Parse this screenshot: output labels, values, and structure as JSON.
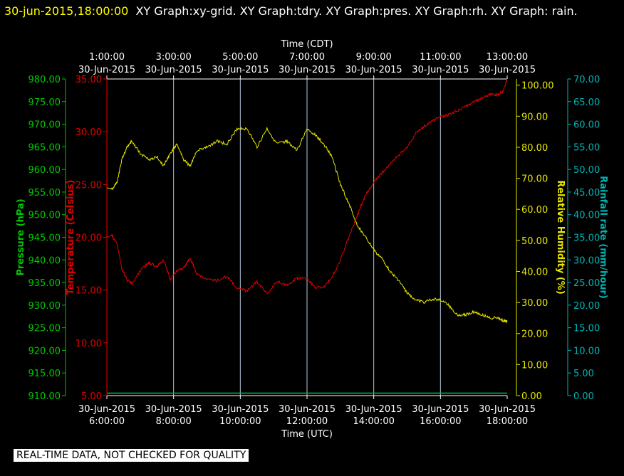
{
  "header": {
    "timestamp": "30-jun-2015,18:00:00",
    "title": "XY Graph:xy-grid.  XY Graph:tdry.  XY Graph:pres.  XY Graph:rh.  XY Graph: rain."
  },
  "disclaimer": "REAL-TIME DATA, NOT CHECKED FOR QUALITY",
  "colors": {
    "pressure": "#00c800",
    "temperature": "#e00000",
    "humidity": "#e6e600",
    "rain": "#00b4b4",
    "grid": "#b4c8dc",
    "frame": "#ffffff",
    "text": "#ffffff"
  },
  "chart_data": {
    "type": "line",
    "top_axis": {
      "title": "Time (CDT)",
      "ticks": [
        {
          "time": "1:00:00",
          "date": "30-Jun-2015"
        },
        {
          "time": "3:00:00",
          "date": "30-Jun-2015"
        },
        {
          "time": "5:00:00",
          "date": "30-Jun-2015"
        },
        {
          "time": "7:00:00",
          "date": "30-Jun-2015"
        },
        {
          "time": "9:00:00",
          "date": "30-Jun-2015"
        },
        {
          "time": "11:00:00",
          "date": "30-Jun-2015"
        },
        {
          "time": "13:00:00",
          "date": "30-Jun-2015"
        }
      ]
    },
    "bottom_axis": {
      "title": "Time (UTC)",
      "range_hours": [
        6,
        18
      ],
      "ticks": [
        {
          "date": "30-Jun-2015",
          "time": "6:00:00"
        },
        {
          "date": "30-Jun-2015",
          "time": "8:00:00"
        },
        {
          "date": "30-Jun-2015",
          "time": "10:00:00"
        },
        {
          "date": "30-Jun-2015",
          "time": "12:00:00"
        },
        {
          "date": "30-Jun-2015",
          "time": "14:00:00"
        },
        {
          "date": "30-Jun-2015",
          "time": "16:00:00"
        },
        {
          "date": "30-Jun-2015",
          "time": "18:00:00"
        }
      ]
    },
    "y_axes": {
      "pressure": {
        "label": "Pressure (hPa)",
        "range": [
          910,
          980
        ],
        "ticks": [
          "910.00",
          "915.00",
          "920.00",
          "925.00",
          "930.00",
          "935.00",
          "940.00",
          "945.00",
          "950.00",
          "955.00",
          "960.00",
          "965.00",
          "970.00",
          "975.00",
          "980.00"
        ]
      },
      "temperature": {
        "label": "Temperature (Celsius)",
        "range": [
          5,
          35
        ],
        "ticks": [
          "5.00",
          "10.00",
          "15.00",
          "20.00",
          "25.00",
          "30.00",
          "35.00"
        ]
      },
      "humidity": {
        "label": "Relative Humidity (%)",
        "range": [
          0,
          102
        ],
        "ticks": [
          "0.00",
          "10.00",
          "20.00",
          "30.00",
          "40.00",
          "50.00",
          "60.00",
          "70.00",
          "80.00",
          "90.00",
          "100.00"
        ]
      },
      "rain": {
        "label": "Rainfall rate (mm/hour)",
        "range": [
          0,
          70
        ],
        "ticks": [
          "0.00",
          "5.00",
          "10.00",
          "15.00",
          "20.00",
          "25.00",
          "30.00",
          "35.00",
          "40.00",
          "45.00",
          "50.00",
          "55.00",
          "60.00",
          "65.00",
          "70.00"
        ]
      }
    },
    "series": [
      {
        "key": "temperature",
        "axis": "temperature",
        "x": [
          6.0,
          6.15,
          6.3,
          6.45,
          6.6,
          6.75,
          7.0,
          7.25,
          7.5,
          7.7,
          7.9,
          8.1,
          8.3,
          8.5,
          8.7,
          9.0,
          9.3,
          9.6,
          9.9,
          10.2,
          10.5,
          10.8,
          11.1,
          11.4,
          11.7,
          12.0,
          12.25,
          12.5,
          12.75,
          13.0,
          13.25,
          13.5,
          13.75,
          14.0,
          14.25,
          14.5,
          14.75,
          15.0,
          15.25,
          15.5,
          15.75,
          16.0,
          16.25,
          16.5,
          16.75,
          17.0,
          17.25,
          17.5,
          17.75,
          17.9,
          18.0
        ],
        "y": [
          20.0,
          20.2,
          19.5,
          17.0,
          16.0,
          15.6,
          16.8,
          17.6,
          17.2,
          17.9,
          16.0,
          16.8,
          17.1,
          18.0,
          16.5,
          16.0,
          15.9,
          16.3,
          15.2,
          14.9,
          15.8,
          14.7,
          15.8,
          15.5,
          16.1,
          16.1,
          15.2,
          15.3,
          16.2,
          17.8,
          20.0,
          22.0,
          24.0,
          25.2,
          26.1,
          27.0,
          27.8,
          28.5,
          29.8,
          30.5,
          31.0,
          31.4,
          31.6,
          32.0,
          32.4,
          32.8,
          33.2,
          33.6,
          33.5,
          34.0,
          35.0
        ]
      },
      {
        "key": "humidity",
        "axis": "humidity",
        "x": [
          6.0,
          6.15,
          6.3,
          6.45,
          6.6,
          6.75,
          7.0,
          7.25,
          7.5,
          7.7,
          7.9,
          8.1,
          8.3,
          8.5,
          8.7,
          9.0,
          9.3,
          9.6,
          9.9,
          10.2,
          10.5,
          10.8,
          11.1,
          11.4,
          11.7,
          12.0,
          12.25,
          12.5,
          12.75,
          13.0,
          13.25,
          13.5,
          13.75,
          14.0,
          14.25,
          14.5,
          14.75,
          15.0,
          15.25,
          15.5,
          15.75,
          16.0,
          16.25,
          16.5,
          16.75,
          17.0,
          17.25,
          17.5,
          17.75,
          17.9,
          18.0
        ],
        "y": [
          67.0,
          66.5,
          68.5,
          76.0,
          80.0,
          82.0,
          78.0,
          76.0,
          77.0,
          74.0,
          78.0,
          81.0,
          76.0,
          74.0,
          79.0,
          80.0,
          82.0,
          81.0,
          86.0,
          86.0,
          80.0,
          86.0,
          81.0,
          82.0,
          79.0,
          86.0,
          84.0,
          81.0,
          77.0,
          68.0,
          62.0,
          55.0,
          51.0,
          47.0,
          44.0,
          40.0,
          37.0,
          33.0,
          31.0,
          30.0,
          31.0,
          31.0,
          29.0,
          26.0,
          26.0,
          27.0,
          26.0,
          25.0,
          25.0,
          24.0,
          24.0
        ]
      },
      {
        "key": "pressure",
        "axis": "pressure",
        "x": [
          6,
          18
        ],
        "y": [
          910.6,
          910.6
        ]
      },
      {
        "key": "rain",
        "axis": "rain",
        "x": [
          6,
          18
        ],
        "y": [
          0.5,
          0.5
        ]
      }
    ],
    "grid": true
  }
}
